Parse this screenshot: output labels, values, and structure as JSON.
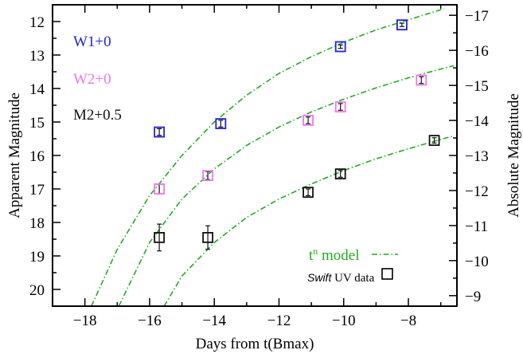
{
  "chart_data": {
    "type": "scatter",
    "xlabel": "Days from t(Bmax)",
    "ylabel": "Apparent Magnitude",
    "ylabel_right": "Absolute Magnitude",
    "xlim": [
      -19,
      -6.5
    ],
    "ylim": [
      20.5,
      11.5
    ],
    "ylim_right": [
      -8.7,
      -17.3
    ],
    "x_ticks": [
      -18,
      -16,
      -14,
      -12,
      -10,
      -8
    ],
    "y_ticks": [
      12,
      13,
      14,
      15,
      16,
      17,
      18,
      19,
      20
    ],
    "y_ticks_right": [
      -9,
      -10,
      -11,
      -12,
      -13,
      -14,
      -15,
      -16,
      -17
    ],
    "series": [
      {
        "name": "W1+0",
        "color": "#2323d8",
        "points": [
          {
            "x": -15.7,
            "y": 15.3,
            "err": 0.1
          },
          {
            "x": -13.8,
            "y": 15.05,
            "err": 0.1
          },
          {
            "x": -10.1,
            "y": 12.75,
            "err": 0.05
          },
          {
            "x": -8.2,
            "y": 12.1,
            "err": 0.05
          }
        ],
        "model": [
          {
            "x": -17.8,
            "y": 20.5
          },
          {
            "x": -17.0,
            "y": 18.8
          },
          {
            "x": -16.0,
            "y": 17.2
          },
          {
            "x": -15.0,
            "y": 16.0
          },
          {
            "x": -14.0,
            "y": 15.0
          },
          {
            "x": -13.0,
            "y": 14.2
          },
          {
            "x": -12.0,
            "y": 13.55
          },
          {
            "x": -11.0,
            "y": 13.05
          },
          {
            "x": -10.0,
            "y": 12.62
          },
          {
            "x": -9.0,
            "y": 12.25
          },
          {
            "x": -8.0,
            "y": 11.95
          },
          {
            "x": -6.9,
            "y": 11.62
          }
        ]
      },
      {
        "name": "W2+0",
        "color": "#ee77ee",
        "points": [
          {
            "x": -15.7,
            "y": 17.0,
            "err": 0.15
          },
          {
            "x": -14.2,
            "y": 16.6,
            "err": 0.12
          },
          {
            "x": -11.1,
            "y": 14.95,
            "err": 0.1
          },
          {
            "x": -10.1,
            "y": 14.55,
            "err": 0.1
          },
          {
            "x": -7.6,
            "y": 13.75,
            "err": 0.1
          }
        ],
        "model": [
          {
            "x": -16.95,
            "y": 20.5
          },
          {
            "x": -16.0,
            "y": 18.6
          },
          {
            "x": -15.0,
            "y": 17.3
          },
          {
            "x": -14.0,
            "y": 16.4
          },
          {
            "x": -13.0,
            "y": 15.7
          },
          {
            "x": -12.0,
            "y": 15.15
          },
          {
            "x": -11.0,
            "y": 14.7
          },
          {
            "x": -10.0,
            "y": 14.32
          },
          {
            "x": -9.0,
            "y": 13.98
          },
          {
            "x": -8.0,
            "y": 13.68
          },
          {
            "x": -7.0,
            "y": 13.42
          },
          {
            "x": -6.6,
            "y": 13.32
          }
        ]
      },
      {
        "name": "M2+0.5",
        "color": "#111111",
        "points": [
          {
            "x": -15.7,
            "y": 18.45,
            "err": 0.4
          },
          {
            "x": -14.2,
            "y": 18.45,
            "err": 0.35
          },
          {
            "x": -11.1,
            "y": 17.1,
            "err": 0.1
          },
          {
            "x": -10.1,
            "y": 16.55,
            "err": 0.1
          },
          {
            "x": -7.2,
            "y": 15.55,
            "err": 0.08
          }
        ],
        "model": [
          {
            "x": -15.55,
            "y": 20.5
          },
          {
            "x": -15.0,
            "y": 19.6
          },
          {
            "x": -14.0,
            "y": 18.6
          },
          {
            "x": -13.0,
            "y": 17.85
          },
          {
            "x": -12.0,
            "y": 17.3
          },
          {
            "x": -11.0,
            "y": 16.85
          },
          {
            "x": -10.0,
            "y": 16.45
          },
          {
            "x": -9.0,
            "y": 16.1
          },
          {
            "x": -8.0,
            "y": 15.8
          },
          {
            "x": -7.0,
            "y": 15.52
          },
          {
            "x": -6.6,
            "y": 15.42
          }
        ]
      }
    ],
    "model_legend": {
      "label_t": "t",
      "label_sup": "n",
      "label_rest": " model",
      "color": "#22aa22"
    },
    "data_legend": {
      "label_italic": "Swift",
      "label_rest": " UV data"
    },
    "legend_placement": "top-left (series names), bottom-right (model and data symbols)",
    "grid": false
  }
}
